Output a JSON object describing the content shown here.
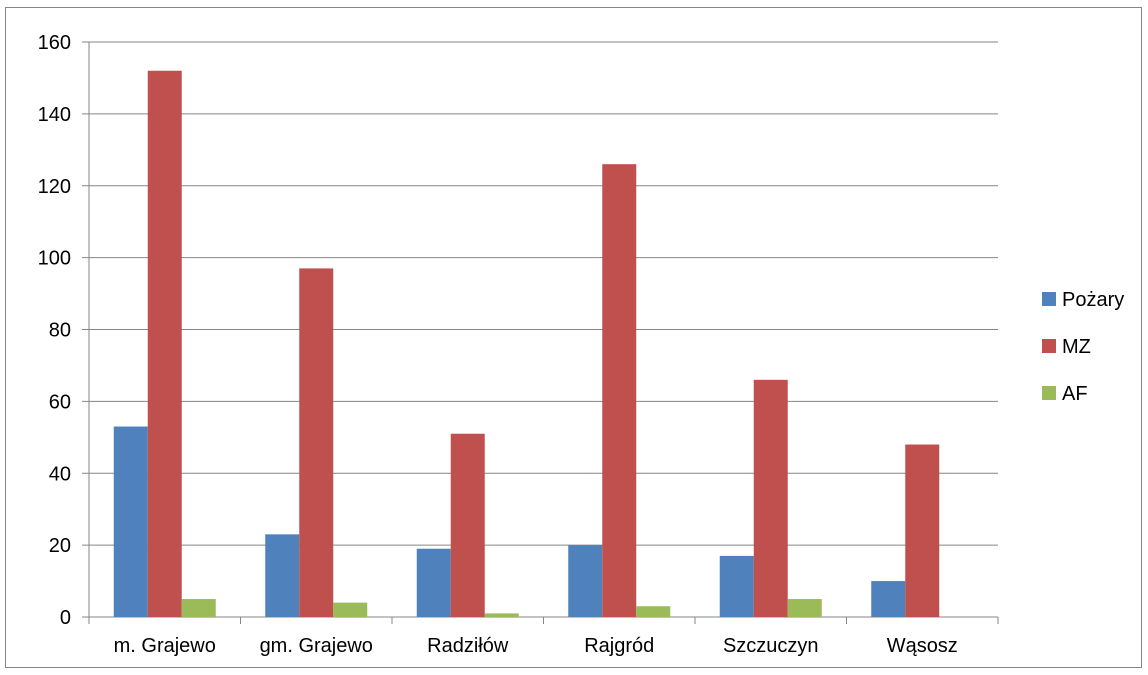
{
  "chart_data": {
    "type": "bar",
    "title": "",
    "xlabel": "",
    "ylabel": "",
    "categories": [
      "m. Grajewo",
      "gm. Grajewo",
      "Radziłów",
      "Rajgród",
      "Szczuczyn",
      "Wąsosz"
    ],
    "series": [
      {
        "name": "Pożary",
        "color": "#4f81bd",
        "values": [
          53,
          23,
          19,
          20,
          17,
          10
        ]
      },
      {
        "name": "MZ",
        "color": "#c0504d",
        "values": [
          152,
          97,
          51,
          126,
          66,
          48
        ]
      },
      {
        "name": "AF",
        "color": "#9bbb59",
        "values": [
          5,
          4,
          1,
          3,
          5,
          0
        ]
      }
    ],
    "ylim": [
      0,
      160
    ],
    "yticks": [
      "0",
      "20",
      "40",
      "60",
      "80",
      "100",
      "120",
      "140",
      "160"
    ],
    "grid": true,
    "legend_position": "right"
  }
}
